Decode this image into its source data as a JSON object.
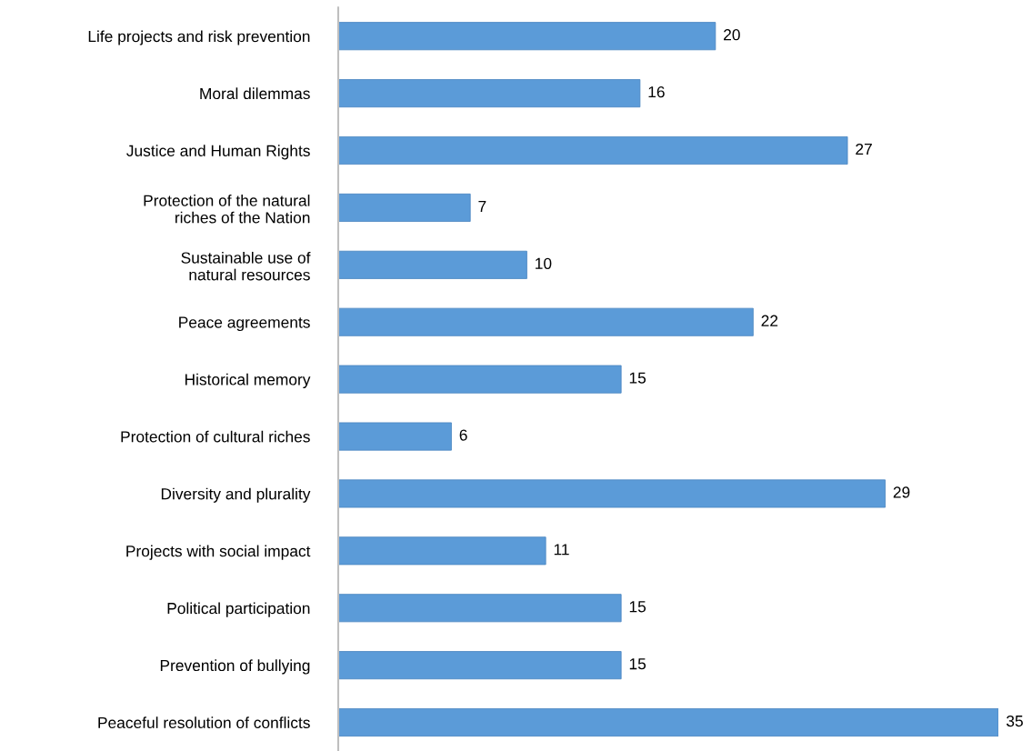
{
  "chart_data": {
    "type": "bar",
    "orientation": "horizontal",
    "categories": [
      "Life projects and risk prevention",
      "Moral dilemmas",
      "Justice and Human Rights",
      "Protection of the natural\nriches of the Nation",
      "Sustainable use of\nnatural resources",
      "Peace agreements",
      "Historical memory",
      "Protection of cultural riches",
      "Diversity and plurality",
      "Projects with social impact",
      "Political participation",
      "Prevention of bullying",
      "Peaceful resolution of conflicts"
    ],
    "values": [
      20,
      16,
      27,
      7,
      10,
      22,
      15,
      6,
      29,
      11,
      15,
      15,
      35
    ],
    "color": "#5b9bd8",
    "data_labels": true,
    "grid": false,
    "legend": false
  }
}
